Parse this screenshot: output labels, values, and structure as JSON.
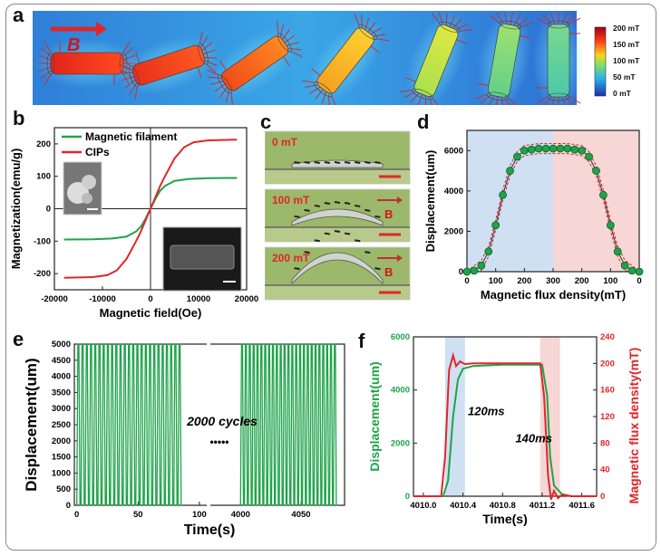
{
  "panel_labels": {
    "a": "a",
    "b": "b",
    "c": "c",
    "d": "d",
    "e": "e",
    "f": "f"
  },
  "colors": {
    "green": "#1fa34a",
    "red": "#e0262a",
    "blue_band": "#cfe0f3",
    "red_band": "#f7d6d6"
  },
  "panel_a": {
    "field_label": "B",
    "colorbar_ticks": [
      "200 mT",
      "150 mT",
      "100 mT",
      "50 mT",
      "0 mT"
    ]
  },
  "panel_c": {
    "frames": [
      {
        "label": "0 mT",
        "arrow": ""
      },
      {
        "label": "100 mT",
        "arrow": "B"
      },
      {
        "label": "200 mT",
        "arrow": "B"
      }
    ]
  },
  "chart_data": [
    {
      "id": "b",
      "type": "line",
      "xlabel": "Magnetic field(Oe)",
      "ylabel": "Magnetization(emu/g)",
      "xlim": [
        -20000,
        20000
      ],
      "ylim": [
        -250,
        250
      ],
      "xticks": [
        "-20000",
        "-10000",
        "0",
        "10000",
        "20000"
      ],
      "yticks": [
        "-200",
        "-100",
        "0",
        "100",
        "200"
      ],
      "legend": [
        "Magnetic filament",
        "CIPs"
      ],
      "series": [
        {
          "name": "Magnetic filament",
          "color": "green",
          "x": [
            -18000,
            -12000,
            -8000,
            -5000,
            -3000,
            -2000,
            -1000,
            0,
            1000,
            2000,
            3000,
            5000,
            8000,
            12000,
            18000
          ],
          "y": [
            -95,
            -94,
            -92,
            -86,
            -70,
            -55,
            -30,
            0,
            30,
            55,
            70,
            86,
            92,
            94,
            95
          ]
        },
        {
          "name": "CIPs",
          "color": "red",
          "x": [
            -18000,
            -12000,
            -9000,
            -7000,
            -5000,
            -3000,
            -2000,
            -1000,
            0,
            1000,
            2000,
            3000,
            5000,
            7000,
            9000,
            12000,
            18000
          ],
          "y": [
            -213,
            -211,
            -205,
            -190,
            -155,
            -100,
            -70,
            -35,
            0,
            35,
            70,
            100,
            155,
            190,
            205,
            211,
            213
          ]
        }
      ]
    },
    {
      "id": "d",
      "type": "scatter",
      "xlabel": "Magnetic flux density(mT)",
      "ylabel": "Displacement(um)",
      "ylim": [
        0,
        7000
      ],
      "xticks": [
        "0",
        "100",
        "200",
        "300",
        "200",
        "100",
        "0"
      ],
      "yticks": [
        "0",
        "2000",
        "4000",
        "6000"
      ],
      "x_index": [
        0,
        0.5,
        1,
        1.5,
        2,
        2.5,
        3,
        3.5,
        4,
        4.5,
        5,
        5.5,
        6,
        6.5,
        7,
        7.5,
        8,
        8.5,
        9,
        9.5,
        10,
        10.5,
        11,
        11.5,
        12
      ],
      "values": [
        0,
        50,
        300,
        1000,
        2300,
        3800,
        5000,
        5700,
        6000,
        6050,
        6100,
        6100,
        6100,
        6100,
        6100,
        6050,
        6000,
        5700,
        5000,
        3800,
        2300,
        1000,
        300,
        50,
        0
      ],
      "band_upper_offset": 250,
      "band_lower_offset": -250
    },
    {
      "id": "e",
      "type": "line",
      "xlabel": "Time(s)",
      "ylabel": "Displacement(um)",
      "ylim": [
        0,
        5000
      ],
      "yticks": [
        "0",
        "500",
        "1000",
        "1500",
        "2000",
        "2500",
        "3000",
        "3500",
        "4000",
        "4500",
        "5000"
      ],
      "xticks_left": [
        "0",
        "50",
        "100"
      ],
      "xticks_right": [
        "4000",
        "4050"
      ],
      "segments": [
        {
          "t_start": 0,
          "t_end": 86,
          "cycles": 25
        },
        {
          "t_start": 4000,
          "t_end": 4080,
          "cycles": 25
        }
      ],
      "amplitude": 5000,
      "annotation": "2000 cycles",
      "dots": "•••••"
    },
    {
      "id": "f",
      "type": "line",
      "xlabel": "Time(s)",
      "ylabel_left": "Displacement(um)",
      "ylabel_right": "Magnetic flux density(mT)",
      "xlim": [
        4009.9,
        4011.75
      ],
      "xticks": [
        "4010.0",
        "4010.4",
        "4010.8",
        "4011.2",
        "4011.6"
      ],
      "yticks_left": [
        "0",
        "2000",
        "4000",
        "6000"
      ],
      "yticks_right": [
        "0",
        "40",
        "80",
        "120",
        "160",
        "200",
        "240"
      ],
      "ylim_left": [
        0,
        6000
      ],
      "ylim_right": [
        0,
        240
      ],
      "annotations": [
        "120ms",
        "140ms"
      ],
      "series": [
        {
          "name": "Displacement",
          "axis": "left",
          "color": "green",
          "x": [
            4009.9,
            4010.2,
            4010.25,
            4010.3,
            4010.35,
            4010.4,
            4010.5,
            4010.8,
            4011.2,
            4011.25,
            4011.28,
            4011.32,
            4011.4,
            4011.5,
            4011.75
          ],
          "y": [
            0,
            0,
            600,
            3000,
            4400,
            4800,
            4900,
            4950,
            4950,
            3800,
            1500,
            400,
            80,
            0,
            0
          ]
        },
        {
          "name": "Magnetic flux density",
          "axis": "right",
          "color": "red",
          "x": [
            4009.9,
            4010.18,
            4010.22,
            4010.26,
            4010.3,
            4010.33,
            4010.37,
            4010.42,
            4010.5,
            4010.6,
            4011.18,
            4011.22,
            4011.26,
            4011.29,
            4011.32,
            4011.36,
            4011.4,
            4011.5,
            4011.75
          ],
          "y": [
            0,
            0,
            60,
            190,
            212,
            196,
            203,
            199,
            200,
            200,
            200,
            150,
            30,
            -5,
            8,
            -3,
            2,
            0,
            0
          ]
        }
      ]
    }
  ]
}
